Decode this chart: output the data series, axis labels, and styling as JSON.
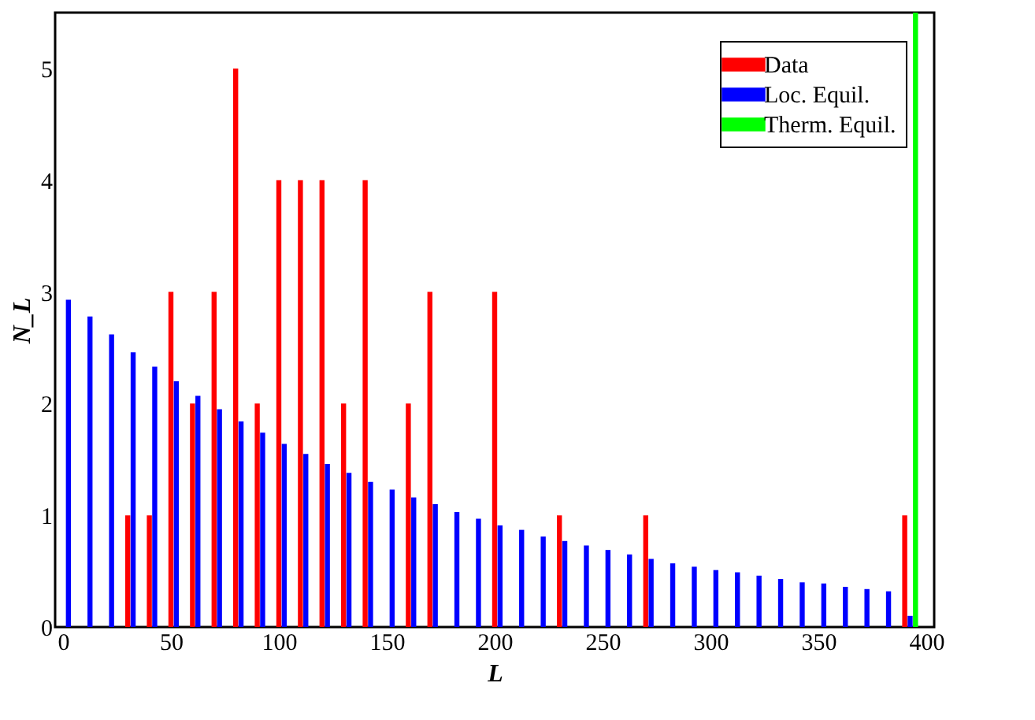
{
  "chart_data": {
    "type": "bar",
    "xlabel": "L",
    "ylabel": "N_L",
    "x": [
      0,
      10,
      20,
      30,
      40,
      50,
      60,
      70,
      80,
      90,
      100,
      110,
      120,
      130,
      140,
      150,
      160,
      170,
      180,
      190,
      200,
      210,
      220,
      230,
      240,
      250,
      260,
      270,
      280,
      290,
      300,
      310,
      320,
      330,
      340,
      350,
      360,
      370,
      380,
      390
    ],
    "series": [
      {
        "name": "Data",
        "color": "#ff0000",
        "values": [
          0,
          0,
          0,
          1,
          1,
          3,
          2,
          3,
          5,
          2,
          4,
          4,
          4,
          2,
          4,
          0,
          2,
          3,
          0,
          0,
          3,
          0,
          0,
          1,
          0,
          0,
          0,
          1,
          0,
          0,
          0,
          0,
          0,
          0,
          0,
          0,
          0,
          0,
          0,
          1
        ]
      },
      {
        "name": "Loc. Equil.",
        "color": "#0000ff",
        "x": [
          2.5,
          12.5,
          22.5,
          32.5,
          42.5,
          52.5,
          62.5,
          72.5,
          82.5,
          92.5,
          102.5,
          112.5,
          122.5,
          132.5,
          142.5,
          152.5,
          162.5,
          172.5,
          182.5,
          192.5,
          202.5,
          212.5,
          222.5,
          232.5,
          242.5,
          252.5,
          262.5,
          272.5,
          282.5,
          292.5,
          302.5,
          312.5,
          322.5,
          332.5,
          342.5,
          352.5,
          362.5,
          372.5,
          382.5,
          392.5
        ],
        "values": [
          2.93,
          2.78,
          2.62,
          2.46,
          2.33,
          2.2,
          2.07,
          1.95,
          1.84,
          1.74,
          1.64,
          1.55,
          1.46,
          1.38,
          1.3,
          1.23,
          1.16,
          1.1,
          1.03,
          0.97,
          0.91,
          0.87,
          0.81,
          0.77,
          0.73,
          0.69,
          0.65,
          0.61,
          0.57,
          0.54,
          0.51,
          0.49,
          0.46,
          0.43,
          0.4,
          0.39,
          0.36,
          0.34,
          0.32,
          0.1
        ]
      },
      {
        "name": "Therm. Equil.",
        "color": "#00ff00",
        "x": [
          395
        ],
        "values": [
          5.5
        ]
      }
    ],
    "xlim": [
      0,
      400
    ],
    "xticks": [
      0,
      50,
      100,
      150,
      200,
      250,
      300,
      350,
      400
    ],
    "ylim": [
      0,
      5.5
    ],
    "yticks": [
      0,
      1,
      2,
      3,
      4,
      5
    ],
    "grid": false,
    "legend": "top right"
  }
}
